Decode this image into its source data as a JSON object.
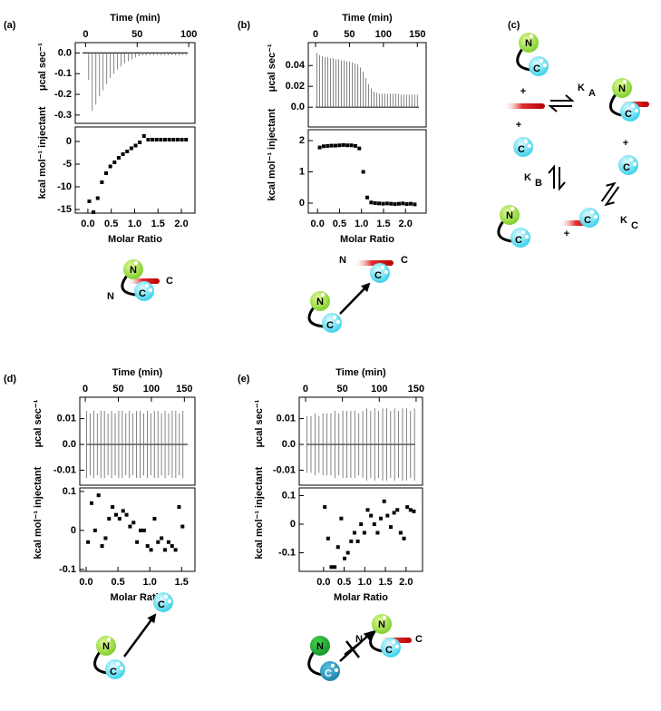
{
  "chart_data": [
    {
      "type": "impulse",
      "x_label": "Time (min)",
      "y_label": "μcal sec⁻¹",
      "xlim": [
        -10,
        106
      ],
      "xticks": [
        0,
        50,
        100
      ],
      "ylim": [
        -0.34,
        0.05
      ],
      "yticks": [
        {
          "value": 0,
          "label": "0.0"
        },
        -0.1,
        -0.2,
        -0.3
      ],
      "x": [
        3,
        6.5,
        10,
        13.5,
        17,
        20.5,
        24,
        27.5,
        31,
        34.5,
        38,
        41.5,
        45,
        48.5,
        52,
        55.5,
        59,
        62.5,
        66,
        69.5,
        73,
        76.5,
        80,
        83.5,
        87,
        90.5,
        94,
        97.5
      ],
      "values": [
        -0.13,
        -0.28,
        -0.25,
        -0.21,
        -0.18,
        -0.15,
        -0.12,
        -0.1,
        -0.08,
        -0.065,
        -0.05,
        -0.04,
        -0.03,
        -0.022,
        -0.016,
        -0.012,
        -0.01,
        -0.01,
        -0.01,
        -0.01,
        -0.01,
        -0.01,
        -0.01,
        -0.01,
        -0.01,
        -0.01,
        -0.01,
        -0.01
      ]
    },
    {
      "type": "scatter",
      "x_label": "Molar Ratio",
      "y_label": "kcal mol⁻¹ injectant",
      "xlim": [
        -0.27,
        2.29
      ],
      "xticks": [
        {
          "value": 0,
          "label": "0.0"
        },
        0.5,
        {
          "value": 1,
          "label": "1.0"
        },
        1.5,
        {
          "value": 2,
          "label": "2.0"
        }
      ],
      "ylim": [
        -15.8,
        3.2
      ],
      "yticks": [
        0,
        -5,
        -10,
        -15
      ],
      "x": [
        0.03,
        0.12,
        0.21,
        0.3,
        0.39,
        0.48,
        0.57,
        0.66,
        0.75,
        0.84,
        0.93,
        1.02,
        1.11,
        1.2,
        1.29,
        1.38,
        1.47,
        1.56,
        1.65,
        1.74,
        1.83,
        1.92,
        2.01,
        2.1
      ],
      "values": [
        -13.2,
        -15.6,
        -12.5,
        -9.0,
        -7.0,
        -5.5,
        -4.6,
        -3.6,
        -2.8,
        -2.2,
        -1.5,
        -0.9,
        -0.2,
        1.2,
        0.4,
        0.4,
        0.4,
        0.4,
        0.4,
        0.4,
        0.4,
        0.4,
        0.4,
        0.4
      ]
    },
    {
      "type": "impulse",
      "x_label": "Time (min)",
      "y_label": "μcal sec⁻¹",
      "xlim": [
        -10.7,
        163
      ],
      "xticks": [
        0,
        50,
        100,
        150
      ],
      "ylim": [
        -0.019,
        0.062
      ],
      "yticks": [
        0.04,
        0.02,
        {
          "value": 0,
          "label": "0.0"
        }
      ],
      "x": [
        2,
        6,
        10,
        14,
        18,
        22,
        26,
        30,
        34,
        38,
        42,
        46,
        50,
        54,
        58,
        62,
        66,
        70,
        74,
        78,
        82,
        86,
        90,
        94,
        98,
        102,
        106,
        110,
        114,
        118,
        122,
        126,
        130,
        134,
        138,
        142,
        146,
        150
      ],
      "values": [
        0.052,
        0.05,
        0.049,
        0.048,
        0.048,
        0.047,
        0.047,
        0.046,
        0.046,
        0.045,
        0.045,
        0.044,
        0.044,
        0.043,
        0.042,
        0.041,
        0.038,
        0.034,
        0.028,
        0.022,
        0.018,
        0.015,
        0.014,
        0.013,
        0.013,
        0.013,
        0.013,
        0.013,
        0.013,
        0.013,
        0.013,
        0.012,
        0.012,
        0.012,
        0.012,
        0.012,
        0.012,
        0.012
      ]
    },
    {
      "type": "scatter",
      "x_label": "Molar Ratio",
      "y_label": "kcal mol⁻¹ injectant",
      "xlim": [
        -0.21,
        2.47
      ],
      "xticks": [
        {
          "value": 0,
          "label": "0.0"
        },
        0.5,
        {
          "value": 1,
          "label": "1.0"
        },
        1.5,
        {
          "value": 2,
          "label": "2.0"
        }
      ],
      "ylim": [
        -0.32,
        2.35
      ],
      "yticks": [
        0,
        1,
        2
      ],
      "x": [
        0.05,
        0.14,
        0.23,
        0.32,
        0.41,
        0.5,
        0.59,
        0.68,
        0.77,
        0.86,
        0.95,
        1.04,
        1.13,
        1.22,
        1.31,
        1.4,
        1.49,
        1.58,
        1.67,
        1.76,
        1.85,
        1.94,
        2.03,
        2.12,
        2.21
      ],
      "values": [
        1.78,
        1.82,
        1.83,
        1.84,
        1.84,
        1.85,
        1.86,
        1.85,
        1.85,
        1.83,
        1.75,
        1.0,
        0.18,
        0.02,
        0.0,
        -0.01,
        -0.02,
        -0.01,
        -0.02,
        -0.03,
        -0.02,
        -0.01,
        -0.03,
        -0.02,
        -0.04
      ]
    },
    {
      "type": "impulse",
      "x_label": "Time (min)",
      "y_label": "μcal sec⁻¹",
      "xlim": [
        -8.3,
        166
      ],
      "xticks": [
        0,
        50,
        100,
        150
      ],
      "ylim": [
        -0.0158,
        0.0183
      ],
      "yticks": [
        0.01,
        {
          "value": 0,
          "label": "0.0"
        },
        -0.01
      ],
      "x": [
        2,
        7.4,
        12.8,
        18.2,
        23.6,
        29,
        34.4,
        39.8,
        45.2,
        50.6,
        56,
        61.4,
        66.8,
        72.2,
        77.6,
        83,
        88.4,
        93.8,
        99.2,
        104.6,
        110,
        115.4,
        120.8,
        126.2,
        131.6,
        137,
        142.4,
        147.8
      ],
      "values": [
        0.013,
        0.012,
        0.013,
        0.012,
        0.013,
        0.013,
        0.012,
        0.013,
        0.012,
        0.013,
        0.013,
        0.012,
        0.013,
        0.012,
        0.013,
        0.013,
        0.012,
        0.013,
        0.012,
        0.013,
        0.013,
        0.012,
        0.013,
        0.012,
        0.013,
        0.013,
        0.012,
        0.013
      ],
      "low_values": [
        -0.013,
        -0.012,
        -0.013,
        -0.012,
        -0.013,
        -0.013,
        -0.012,
        -0.013,
        -0.012,
        -0.013,
        -0.013,
        -0.012,
        -0.013,
        -0.012,
        -0.013,
        -0.013,
        -0.012,
        -0.013,
        -0.012,
        -0.013,
        -0.013,
        -0.012,
        -0.013,
        -0.012,
        -0.013,
        -0.013,
        -0.012,
        -0.013
      ]
    },
    {
      "type": "scatter",
      "x_label": "Molar Ratio",
      "y_label": "kcal mol⁻¹ injectant",
      "xlim": [
        -0.1,
        1.71
      ],
      "xticks": [
        {
          "value": 0,
          "label": "0.0"
        },
        0.5,
        {
          "value": 1,
          "label": "1.0"
        },
        1.5
      ],
      "ylim": [
        -0.105,
        0.109
      ],
      "yticks": [
        0.1,
        0,
        -0.1
      ],
      "x": [
        0.03,
        0.085,
        0.14,
        0.195,
        0.25,
        0.305,
        0.36,
        0.415,
        0.47,
        0.525,
        0.58,
        0.635,
        0.69,
        0.745,
        0.8,
        0.855,
        0.91,
        0.965,
        1.02,
        1.075,
        1.13,
        1.185,
        1.24,
        1.295,
        1.35,
        1.405,
        1.46,
        1.515
      ],
      "values": [
        -0.03,
        0.07,
        0.0,
        0.09,
        -0.04,
        -0.02,
        0.03,
        0.06,
        0.04,
        0.03,
        0.05,
        0.04,
        0.01,
        0.02,
        -0.03,
        0.0,
        0.0,
        -0.04,
        -0.05,
        0.03,
        -0.03,
        -0.02,
        -0.05,
        -0.03,
        -0.04,
        -0.05,
        0.06,
        0.01
      ]
    },
    {
      "type": "impulse",
      "x_label": "Time (min)",
      "y_label": "μcal sec⁻¹",
      "xlim": [
        -8.6,
        158.7
      ],
      "xticks": [
        0,
        50,
        100,
        150
      ],
      "ylim": [
        -0.0158,
        0.0183
      ],
      "yticks": [
        0.01,
        {
          "value": 0,
          "label": "0.0"
        },
        -0.01
      ],
      "x": [
        2,
        7.4,
        12.8,
        18.2,
        23.6,
        29,
        34.4,
        39.8,
        45.2,
        50.6,
        56,
        61.4,
        66.8,
        72.2,
        77.6,
        83,
        88.4,
        93.8,
        99.2,
        104.6,
        110,
        115.4,
        120.8,
        126.2,
        131.6,
        137,
        142.4,
        147.8
      ],
      "values": [
        0.011,
        0.011,
        0.012,
        0.011,
        0.012,
        0.012,
        0.012,
        0.013,
        0.012,
        0.013,
        0.013,
        0.013,
        0.013,
        0.012,
        0.013,
        0.014,
        0.013,
        0.014,
        0.013,
        0.014,
        0.014,
        0.013,
        0.014,
        0.013,
        0.014,
        0.014,
        0.013,
        0.014
      ],
      "low_values": [
        -0.011,
        -0.011,
        -0.012,
        -0.011,
        -0.012,
        -0.012,
        -0.012,
        -0.013,
        -0.012,
        -0.013,
        -0.013,
        -0.013,
        -0.013,
        -0.012,
        -0.013,
        -0.014,
        -0.013,
        -0.014,
        -0.013,
        -0.014,
        -0.014,
        -0.013,
        -0.014,
        -0.013,
        -0.014,
        -0.014,
        -0.013,
        -0.014
      ]
    },
    {
      "type": "scatter",
      "x_label": "Molar Ratio",
      "y_label": "kcal mol⁻¹ injectant",
      "xlim": [
        -0.59,
        2.4
      ],
      "xticks": [
        {
          "value": 0,
          "label": "0.0"
        },
        0.5,
        {
          "value": 1,
          "label": "1.0"
        },
        1.5,
        {
          "value": 2,
          "label": "2.0"
        }
      ],
      "ylim": [
        -0.165,
        0.127
      ],
      "yticks": [
        0.1,
        0,
        -0.1
      ],
      "x": [
        0.03,
        0.11,
        0.19,
        0.27,
        0.35,
        0.43,
        0.51,
        0.59,
        0.67,
        0.75,
        0.83,
        0.91,
        0.99,
        1.07,
        1.15,
        1.23,
        1.31,
        1.39,
        1.47,
        1.55,
        1.63,
        1.71,
        1.79,
        1.87,
        1.95,
        2.03,
        2.11,
        2.19
      ],
      "values": [
        0.06,
        -0.05,
        -0.15,
        -0.15,
        -0.08,
        0.02,
        -0.12,
        -0.1,
        -0.06,
        -0.03,
        -0.06,
        0.0,
        -0.03,
        0.05,
        0.03,
        0.0,
        -0.03,
        0.02,
        0.08,
        0.03,
        -0.01,
        0.04,
        0.05,
        -0.03,
        -0.05,
        0.06,
        0.05,
        0.045
      ]
    }
  ],
  "diagram": {
    "panel_labels": [
      "(a)",
      "(b)",
      "(c)",
      "(d)",
      "(e)"
    ],
    "n": "N",
    "c": "C",
    "plus": "+",
    "k": "K",
    "k_subs": [
      "A",
      "B",
      "C"
    ]
  }
}
